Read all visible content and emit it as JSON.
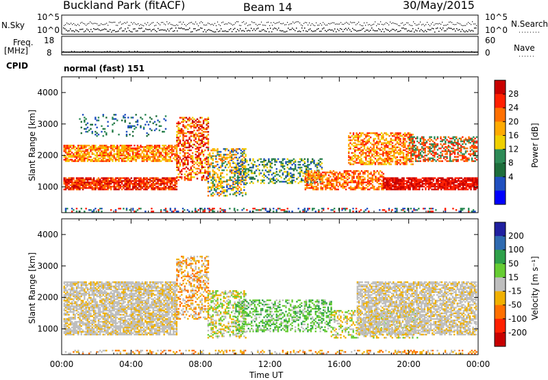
{
  "header": {
    "station": "Buckland Park (fitACF)",
    "beam": "Beam 14",
    "date": "30/May/2015"
  },
  "aux_panels": {
    "nsky_label": "N.Sky",
    "nsky_ticks": [
      "10^5",
      "10^0"
    ],
    "nsearch_label": "N.Search",
    "nsearch_ticks": [
      "10^5",
      "10^0"
    ],
    "freq_label_1": "Freq.",
    "freq_label_2": "[MHz]",
    "freq_ticks": [
      "18",
      "8"
    ],
    "nave_label": "Nave",
    "nave_ticks": [
      "60",
      "0"
    ],
    "cpid_label": "CPID",
    "cpid_value": "normal (fast) 151"
  },
  "chart_data": [
    {
      "type": "heatmap",
      "ylabel": "Slant Range [km]",
      "yticks": [
        "4000",
        "3000",
        "2000",
        "1000"
      ],
      "ylim": [
        180,
        4500
      ],
      "colorbar": {
        "label": "Power [dB]",
        "ticks": [
          "28",
          "24",
          "20",
          "16",
          "12",
          "8",
          "4"
        ],
        "colors": [
          "#c80000",
          "#ff2000",
          "#ff7000",
          "#ffaa00",
          "#f0d000",
          "#2e8b57",
          "#1e6e3c",
          "#2050c0",
          "#0000ff"
        ]
      }
    },
    {
      "type": "heatmap",
      "ylabel": "Slant Range [km]",
      "yticks": [
        "4000",
        "3000",
        "2000",
        "1000"
      ],
      "ylim": [
        180,
        4500
      ],
      "colorbar": {
        "label": "Velocity [m s⁻¹]",
        "ticks": [
          "200",
          "100",
          "50",
          "15",
          "-15",
          "-50",
          "-100",
          "-200"
        ],
        "colors": [
          "#2020a0",
          "#2e6ab0",
          "#2ea04a",
          "#66cc33",
          "#bebebe",
          "#f0b000",
          "#ff7000",
          "#ff2000",
          "#c80000"
        ]
      }
    }
  ],
  "x_axis": {
    "ticks": [
      "00:00",
      "04:00",
      "08:00",
      "12:00",
      "16:00",
      "20:00",
      "00:00"
    ],
    "label": "Time UT"
  }
}
